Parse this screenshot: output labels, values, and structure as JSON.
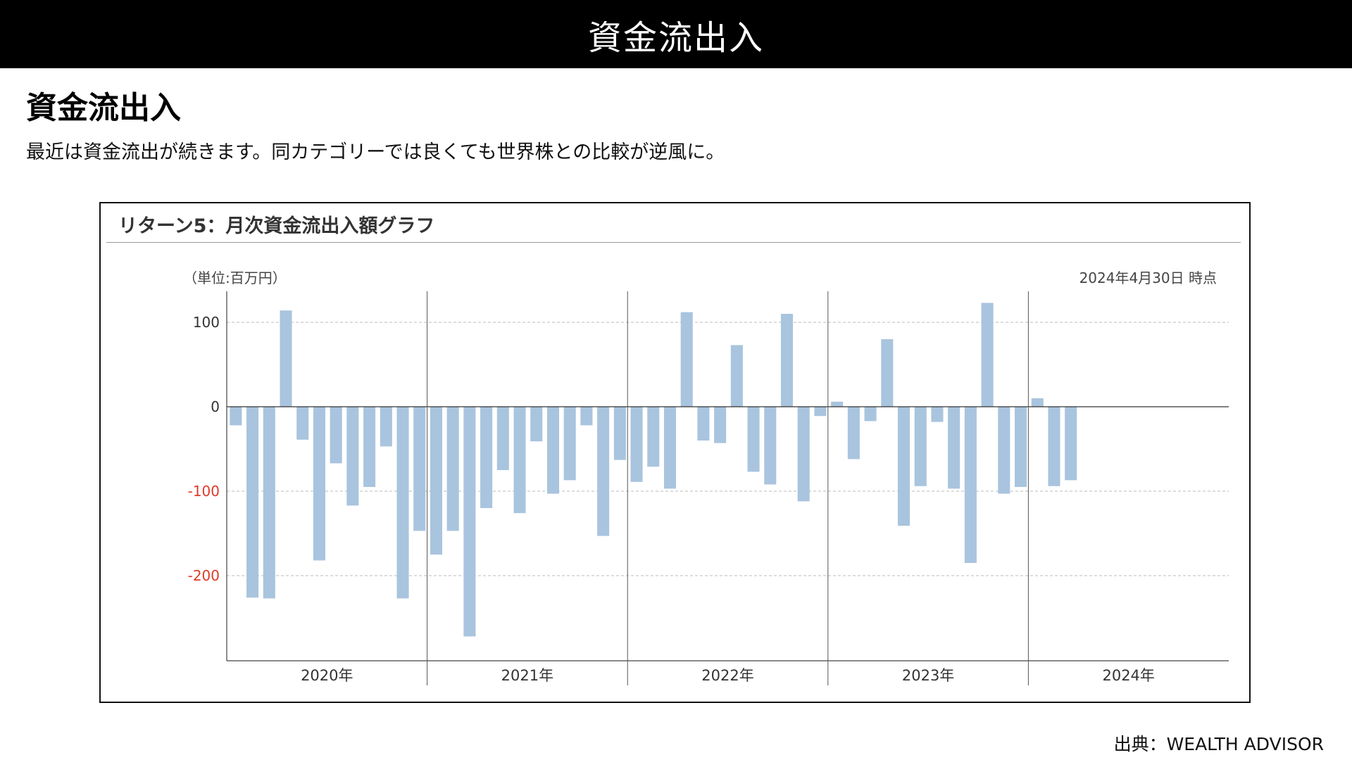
{
  "header": {
    "title": "資金流出入"
  },
  "section": {
    "heading": "資金流出入",
    "description": "最近は資金流出が続きます。同カテゴリーでは良くても世界株との比較が逆風に。"
  },
  "chart_data": {
    "type": "bar",
    "title": "リターン5：月次資金流出入額グラフ",
    "unit_label": "（単位:百万円）",
    "as_of": "2024年4月30日 時点",
    "ylim": [
      -300,
      130
    ],
    "yticks": [
      {
        "value": 100,
        "label": "100",
        "color": "#333333"
      },
      {
        "value": 0,
        "label": "0",
        "color": "#333333"
      },
      {
        "value": -100,
        "label": "-100",
        "color": "#e03a2a"
      },
      {
        "value": -200,
        "label": "-200",
        "color": "#e03a2a"
      }
    ],
    "grid": true,
    "bar_color": "#a9c4de",
    "years": [
      "2020年",
      "2021年",
      "2022年",
      "2023年",
      "2024年"
    ],
    "values": [
      -22,
      -226,
      -227,
      114,
      -39,
      -182,
      -67,
      -117,
      -95,
      -47,
      -227,
      -147,
      -175,
      -147,
      -272,
      -120,
      -75,
      -126,
      -41,
      -103,
      -87,
      -22,
      -153,
      -63,
      -89,
      -71,
      -97,
      112,
      -40,
      -43,
      73,
      -77,
      -92,
      110,
      -112,
      -11,
      6,
      -62,
      -17,
      80,
      -141,
      -94,
      -18,
      -97,
      -185,
      123,
      -103,
      -95,
      10,
      -94,
      -87
    ]
  },
  "footer": {
    "source": "出典：WEALTH ADVISOR"
  }
}
